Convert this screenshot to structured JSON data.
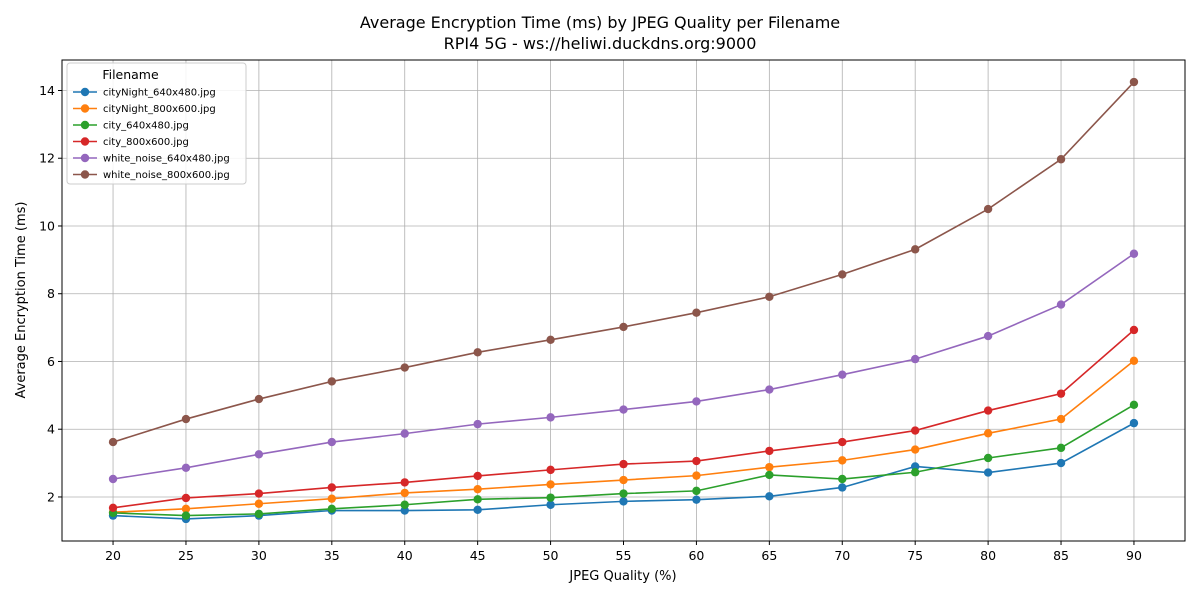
{
  "chart_data": {
    "type": "line",
    "title": "Average Encryption Time (ms) by JPEG Quality per Filename",
    "subtitle": "RPI4 5G - ws://heliwi.duckdns.org:9000",
    "xlabel": "JPEG Quality (%)",
    "ylabel": "Average Encryption Time (ms)",
    "x": [
      20,
      25,
      30,
      35,
      40,
      45,
      50,
      55,
      60,
      65,
      70,
      75,
      80,
      85,
      90
    ],
    "xlim": [
      16.5,
      93.5
    ],
    "ylim": [
      0.7,
      14.9
    ],
    "y_ticks": [
      2,
      4,
      6,
      8,
      10,
      12,
      14
    ],
    "grid": true,
    "legend": {
      "title": "Filename",
      "placement": "top-left"
    },
    "series": [
      {
        "name": "cityNight_640x480.jpg",
        "color": "#1f77b4",
        "values": [
          1.45,
          1.35,
          1.45,
          1.6,
          1.6,
          1.62,
          1.77,
          1.87,
          1.92,
          2.02,
          2.28,
          2.9,
          2.72,
          3.0,
          4.18
        ]
      },
      {
        "name": "cityNight_800x600.jpg",
        "color": "#ff7f0e",
        "values": [
          1.55,
          1.65,
          1.8,
          1.95,
          2.12,
          2.23,
          2.37,
          2.5,
          2.63,
          2.88,
          3.08,
          3.4,
          3.88,
          4.3,
          6.02
        ]
      },
      {
        "name": "city_640x480.jpg",
        "color": "#2ca02c",
        "values": [
          1.53,
          1.45,
          1.5,
          1.65,
          1.77,
          1.93,
          1.98,
          2.1,
          2.18,
          2.65,
          2.53,
          2.73,
          3.15,
          3.45,
          4.72
        ]
      },
      {
        "name": "city_800x600.jpg",
        "color": "#d62728",
        "values": [
          1.68,
          1.97,
          2.1,
          2.28,
          2.43,
          2.62,
          2.8,
          2.97,
          3.06,
          3.36,
          3.62,
          3.96,
          4.55,
          5.05,
          6.93
        ]
      },
      {
        "name": "white_noise_640x480.jpg",
        "color": "#9467bd",
        "values": [
          2.53,
          2.86,
          3.26,
          3.62,
          3.87,
          4.15,
          4.35,
          4.58,
          4.82,
          5.17,
          5.61,
          6.07,
          6.75,
          7.68,
          9.18
        ]
      },
      {
        "name": "white_noise_800x600.jpg",
        "color": "#8c564b",
        "values": [
          3.62,
          4.3,
          4.89,
          5.41,
          5.82,
          6.27,
          6.64,
          7.02,
          7.44,
          7.91,
          8.57,
          9.31,
          10.5,
          11.97,
          14.25
        ]
      }
    ]
  }
}
